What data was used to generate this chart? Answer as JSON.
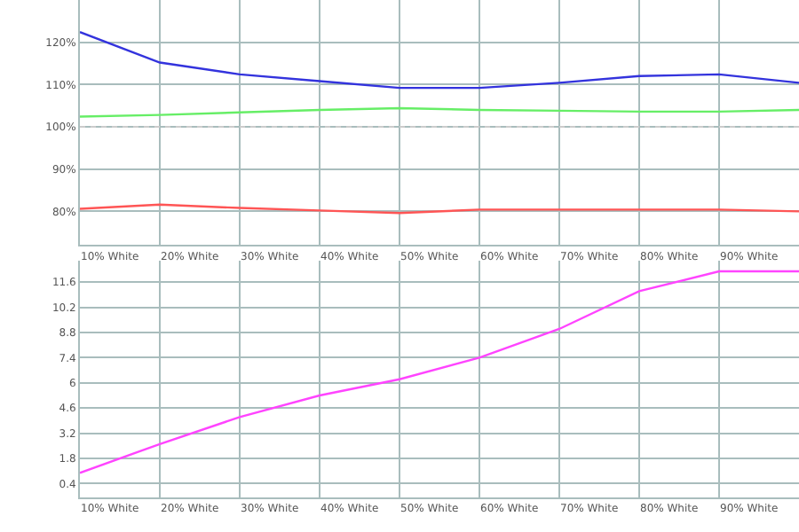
{
  "chart_data": [
    {
      "type": "line",
      "categories": [
        "10% White",
        "20% White",
        "30% White",
        "40% White",
        "50% White",
        "60% White",
        "70% White",
        "80% White",
        "90% White",
        null
      ],
      "series": [
        {
          "color": "#3333dd",
          "values": [
            122.4,
            115.2,
            112.4,
            110.8,
            109.2,
            109.2,
            110.4,
            112.0,
            112.4,
            110.4
          ]
        },
        {
          "color": "#66ee66",
          "values": [
            102.4,
            102.8,
            103.4,
            104.0,
            104.4,
            104.0,
            103.8,
            103.6,
            103.6,
            104.0
          ]
        },
        {
          "color": "#ff5555",
          "values": [
            80.6,
            81.6,
            80.8,
            80.2,
            79.6,
            80.4,
            80.4,
            80.4,
            80.4,
            80.0
          ]
        }
      ],
      "ylim": [
        72,
        130
      ],
      "yticks": [
        {
          "value": 80,
          "label": "80%"
        },
        {
          "value": 90,
          "label": "90%"
        },
        {
          "value": 100,
          "label": "100%"
        },
        {
          "value": 110,
          "label": "110%"
        },
        {
          "value": 120,
          "label": "120%"
        }
      ],
      "ref_lines": [
        {
          "axis": "y",
          "value": 100,
          "color": "#cccccc",
          "line_style": "dotted"
        }
      ],
      "grid": true,
      "marker": "none",
      "line_style": "solid"
    },
    {
      "type": "line",
      "categories": [
        "10% White",
        "20% White",
        "30% White",
        "40% White",
        "50% White",
        "60% White",
        "70% White",
        "80% White",
        "90% White",
        null
      ],
      "series": [
        {
          "color": "#ff44ff",
          "values": [
            1.0,
            2.6,
            4.1,
            5.3,
            6.2,
            7.4,
            9.0,
            11.1,
            12.2,
            12.2
          ]
        }
      ],
      "ylim": [
        -0.35,
        12.8
      ],
      "yticks": [
        0.4,
        1.8,
        3.2,
        4.6,
        6,
        7.4,
        8.8,
        10.2,
        11.6
      ],
      "grid": true,
      "marker": "none",
      "line_style": "solid"
    }
  ]
}
